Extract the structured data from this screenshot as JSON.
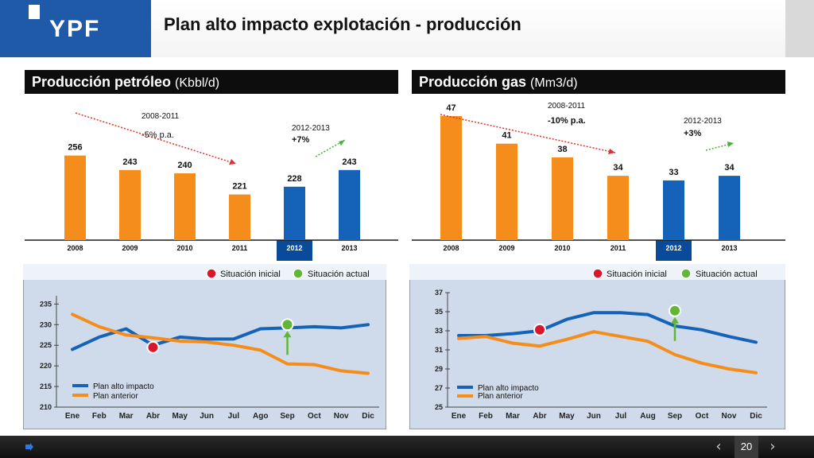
{
  "header": {
    "logo_text": "YPF",
    "title": "Plan alto impacto explotación - producción"
  },
  "colors": {
    "orange": "#f58d1c",
    "blue": "#1463b8",
    "dark_blue": "#0a4a9a",
    "panel_bg": "#cdd9e8",
    "red_marker": "#d9162a",
    "green_marker": "#62b637"
  },
  "oil": {
    "title": "Producción petróleo",
    "unit": "(Kbbl/d)",
    "legend": {
      "inicial": "Situación inicial",
      "actual": "Situación  actual"
    },
    "trend_down": {
      "period": "2008-2011",
      "rate": "-5% p.a."
    },
    "trend_up": {
      "period": "2012-2013",
      "rate": "+7%"
    },
    "line_legend": {
      "blue": "Plan alto impacto",
      "orange": "Plan anterior"
    }
  },
  "gas": {
    "title": "Producción gas",
    "unit": "(Mm3/d)",
    "legend": {
      "inicial": "Situación inicial",
      "actual": "Situación  actual"
    },
    "trend_down": {
      "period": "2008-2011",
      "rate": "-10% p.a."
    },
    "trend_up": {
      "period": "2012-2013",
      "rate": "+3%"
    },
    "line_legend": {
      "blue": "Plan alto impacto",
      "orange": "Plan anterior"
    }
  },
  "footer": {
    "page_number": "20",
    "prev": "‹",
    "next": "›"
  },
  "chart_data": [
    {
      "id": "oil_bars",
      "type": "bar",
      "categories": [
        "2008",
        "2009",
        "2010",
        "2011",
        "2012",
        "2013"
      ],
      "values": [
        256,
        243,
        240,
        221,
        228,
        243
      ],
      "value_labels": [
        "256",
        "243",
        "240",
        "221",
        "228",
        "243"
      ],
      "highlighted": "2012",
      "colors": [
        "orange",
        "orange",
        "orange",
        "orange",
        "blue",
        "blue"
      ],
      "ylim": [
        180,
        260
      ]
    },
    {
      "id": "gas_bars",
      "type": "bar",
      "categories": [
        "2008",
        "2009",
        "2010",
        "2011",
        "2012",
        "2013"
      ],
      "values": [
        47,
        41,
        38,
        34,
        33,
        34
      ],
      "value_labels": [
        "47",
        "41",
        "38",
        "34",
        "33",
        "34"
      ],
      "highlighted": "2012",
      "colors": [
        "orange",
        "orange",
        "orange",
        "orange",
        "blue",
        "blue"
      ],
      "ylim": [
        20,
        47
      ]
    },
    {
      "id": "oil_lines",
      "type": "line",
      "x": [
        "Ene",
        "Feb",
        "Mar",
        "Abr",
        "May",
        "Jun",
        "Jul",
        "Ago",
        "Sep",
        "Oct",
        "Nov",
        "Dic"
      ],
      "ylim": [
        210,
        237
      ],
      "yticks": [
        210,
        215,
        220,
        225,
        230,
        235
      ],
      "series": [
        {
          "name": "Plan alto impacto",
          "color": "blue",
          "values": [
            224,
            227,
            229,
            225,
            227,
            226.5,
            226.5,
            229,
            229.2,
            229.5,
            229.2,
            230
          ]
        },
        {
          "name": "Plan anterior",
          "color": "orange",
          "values": [
            232.5,
            229.5,
            227.5,
            226.8,
            226,
            225.8,
            225,
            223.8,
            220.5,
            220.3,
            218.8,
            218.2
          ]
        }
      ],
      "markers": [
        {
          "label": "inicial",
          "x": "Abr",
          "y": 224.5,
          "color": "red"
        },
        {
          "label": "actual",
          "x": "Sep",
          "y": 230,
          "color": "green"
        }
      ]
    },
    {
      "id": "gas_lines",
      "type": "line",
      "x": [
        "Ene",
        "Feb",
        "Mar",
        "Abr",
        "May",
        "Jun",
        "Jul",
        "Aug",
        "Sep",
        "Oct",
        "Nov",
        "Dic"
      ],
      "ylim": [
        25,
        37
      ],
      "yticks": [
        25,
        27,
        29,
        31,
        33,
        35,
        37
      ],
      "series": [
        {
          "name": "Plan alto impacto",
          "color": "blue",
          "values": [
            32.5,
            32.5,
            32.7,
            33,
            34.2,
            34.9,
            34.9,
            34.7,
            33.5,
            33.1,
            32.4,
            31.8
          ]
        },
        {
          "name": "Plan anterior",
          "color": "orange",
          "values": [
            32.2,
            32.4,
            31.7,
            31.4,
            32.1,
            32.9,
            32.4,
            31.9,
            30.5,
            29.6,
            29,
            28.6
          ]
        }
      ],
      "markers": [
        {
          "label": "inicial",
          "x": "Abr",
          "y": 33.1,
          "color": "red"
        },
        {
          "label": "actual",
          "x": "Sep",
          "y": 35.1,
          "color": "green"
        }
      ]
    }
  ]
}
